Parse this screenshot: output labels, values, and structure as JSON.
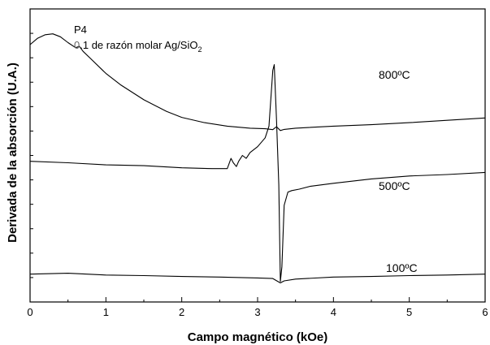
{
  "chart_data": {
    "type": "line",
    "xlabel": "Campo magnético (kOe)",
    "ylabel": "Derivada de la absorción (U.A.)",
    "xlim": [
      0,
      6
    ],
    "ylim": [
      0,
      1
    ],
    "x_ticks": [
      "0",
      "1",
      "2",
      "3",
      "4",
      "5",
      "6"
    ],
    "y_tick_labels_shown": false,
    "annotation": {
      "sample": "P4",
      "ratio_prefix": "0",
      "ratio_text": ".1 de razón molar Ag/SiO",
      "ratio_subscript": "2"
    },
    "series": [
      {
        "name": "800ºC",
        "x": [
          0.0,
          0.1,
          0.2,
          0.3,
          0.4,
          0.5,
          0.6,
          0.65,
          0.7,
          0.8,
          1.0,
          1.2,
          1.5,
          1.8,
          2.0,
          2.3,
          2.6,
          2.9,
          3.1,
          3.2,
          3.25,
          3.3,
          3.35,
          3.5,
          4.0,
          4.5,
          5.0,
          5.5,
          6.0
        ],
        "y": [
          0.878,
          0.9,
          0.912,
          0.915,
          0.905,
          0.885,
          0.868,
          0.872,
          0.855,
          0.83,
          0.78,
          0.74,
          0.69,
          0.65,
          0.63,
          0.612,
          0.6,
          0.593,
          0.591,
          0.588,
          0.598,
          0.585,
          0.589,
          0.593,
          0.6,
          0.605,
          0.612,
          0.62,
          0.628
        ]
      },
      {
        "name": "500ºC",
        "x": [
          0.0,
          0.5,
          1.0,
          1.5,
          2.0,
          2.4,
          2.6,
          2.65,
          2.68,
          2.72,
          2.75,
          2.8,
          2.85,
          2.9,
          3.0,
          3.1,
          3.15,
          3.2,
          3.22,
          3.25,
          3.28,
          3.3,
          3.32,
          3.35,
          3.4,
          3.45,
          3.55,
          3.7,
          4.0,
          4.5,
          5.0,
          5.5,
          6.0
        ],
        "y": [
          0.48,
          0.475,
          0.468,
          0.465,
          0.458,
          0.455,
          0.455,
          0.49,
          0.475,
          0.462,
          0.48,
          0.5,
          0.49,
          0.51,
          0.53,
          0.56,
          0.6,
          0.79,
          0.81,
          0.62,
          0.4,
          0.07,
          0.12,
          0.33,
          0.375,
          0.38,
          0.385,
          0.395,
          0.405,
          0.42,
          0.43,
          0.435,
          0.442
        ]
      },
      {
        "name": "100ºC",
        "x": [
          0.0,
          0.5,
          1.0,
          1.5,
          2.0,
          2.5,
          3.0,
          3.2,
          3.3,
          3.35,
          3.5,
          4.0,
          4.5,
          5.0,
          5.5,
          6.0
        ],
        "y": [
          0.095,
          0.098,
          0.092,
          0.09,
          0.087,
          0.085,
          0.082,
          0.08,
          0.065,
          0.072,
          0.078,
          0.085,
          0.087,
          0.09,
          0.092,
          0.095
        ]
      }
    ]
  }
}
